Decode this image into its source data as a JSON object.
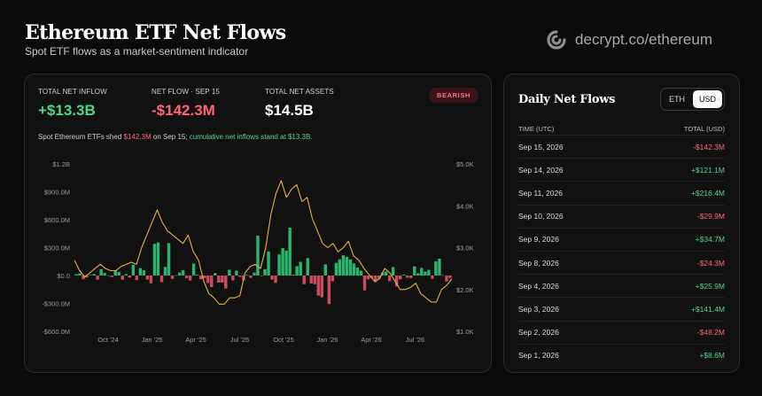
{
  "header": {
    "title": "Ethereum ETF Net Flows",
    "subtitle": "Spot ETF flows as a market-sentiment indicator",
    "brand": "decrypt.co/ethereum"
  },
  "kpis": [
    {
      "label": "TOTAL NET INFLOW",
      "value": "+$13.3B",
      "tone": "green"
    },
    {
      "label": "NET FLOW · SEP 15",
      "value": "-$142.3M",
      "tone": "red"
    },
    {
      "label": "TOTAL NET ASSETS",
      "value": "$14.5B",
      "tone": "white"
    }
  ],
  "badge": "BEARISH",
  "summary": {
    "lead": "Spot Ethereum ETFs shed ",
    "amount": "$142.3M",
    "mid": " on Sep 15; ",
    "tail": "cumulative net inflows stand at $13.3B."
  },
  "colors": {
    "inflow": "#2fd27e",
    "outflow": "#f0566d",
    "price_line": "#e2b23a",
    "background": "#0b0b0c"
  },
  "chart_data": {
    "type": "bar",
    "left_axis": {
      "ticks": [
        "$1.2B",
        "$900.0M",
        "$600.0M",
        "$300.0M",
        "$0.0",
        "-$300.0M",
        "-$600.0M"
      ],
      "ylim": [
        -600,
        1200
      ],
      "unit": "$M"
    },
    "right_axis": {
      "ticks": [
        "$5.0K",
        "$4.0K",
        "$3.0K",
        "$2.0K",
        "$1.0K"
      ],
      "ylim": [
        1000,
        5000
      ],
      "unit": "USD"
    },
    "x_ticks": [
      "Oct '24",
      "Jan '25",
      "Apr '25",
      "Jul '25",
      "Oct '25",
      "Jan '26",
      "Apr '26",
      "Jul '26"
    ],
    "x_range": [
      "2024-08",
      "2026-09"
    ],
    "grid": false,
    "series": [
      {
        "kind": "bars",
        "segments": [
          {
            "from": 0,
            "to": 16,
            "mean": 15,
            "amp": 70
          },
          {
            "from": 16,
            "to": 22,
            "mean": 60,
            "amp": 160
          },
          {
            "from": 22,
            "to": 28,
            "mean": 120,
            "amp": 250
          },
          {
            "from": 28,
            "to": 36,
            "mean": 20,
            "amp": 110
          },
          {
            "from": 36,
            "to": 44,
            "mean": -40,
            "amp": 120
          },
          {
            "from": 44,
            "to": 51,
            "mean": -10,
            "amp": 80
          },
          {
            "from": 51,
            "to": 58,
            "mean": 300,
            "amp": 420
          },
          {
            "from": 58,
            "to": 64,
            "mean": 150,
            "amp": 400
          },
          {
            "from": 64,
            "to": 72,
            "mean": -50,
            "amp": 350
          },
          {
            "from": 72,
            "to": 84,
            "mean": 30,
            "amp": 200
          },
          {
            "from": 84,
            "to": 94,
            "mean": -10,
            "amp": 110
          },
          {
            "from": 94,
            "to": 99,
            "mean": 30,
            "amp": 70
          },
          {
            "from": 99,
            "to": 106,
            "mean": 70,
            "amp": 140
          }
        ],
        "count": 106
      },
      {
        "kind": "line",
        "points": [
          2700,
          2450,
          2300,
          2400,
          2500,
          2600,
          2500,
          2450,
          2450,
          2550,
          2600,
          2650,
          2600,
          3000,
          3300,
          3600,
          3900,
          3600,
          3400,
          3300,
          3200,
          3100,
          3300,
          2900,
          2700,
          2200,
          1900,
          1800,
          1650,
          1650,
          1800,
          1800,
          1850,
          2400,
          2550,
          2600,
          2500,
          3000,
          3800,
          4300,
          4600,
          4200,
          4400,
          4500,
          4100,
          4200,
          3700,
          3400,
          3100,
          3000,
          3100,
          2900,
          3000,
          3150,
          2800,
          2700,
          2500,
          2350,
          2200,
          2250,
          2500,
          2400,
          2200,
          2000,
          2000,
          2050,
          2150,
          1900,
          1800,
          1700,
          1700,
          2000,
          2100,
          2250
        ]
      }
    ]
  },
  "daily": {
    "title": "Daily Net Flows",
    "toggle": [
      "ETH",
      "USD"
    ],
    "active": "USD",
    "col_date": "TIME (UTC)",
    "col_total": "TOTAL (USD)",
    "rows": [
      {
        "date": "Sep 15, 2026",
        "value": "-$142.3M"
      },
      {
        "date": "Sep 14, 2026",
        "value": "+$121.1M"
      },
      {
        "date": "Sep 11, 2026",
        "value": "+$216.4M"
      },
      {
        "date": "Sep 10, 2026",
        "value": "-$29.9M"
      },
      {
        "date": "Sep 9, 2026",
        "value": "+$34.7M"
      },
      {
        "date": "Sep 8, 2026",
        "value": "-$24.3M"
      },
      {
        "date": "Sep 4, 2026",
        "value": "+$25.9M"
      },
      {
        "date": "Sep 3, 2026",
        "value": "+$141.4M"
      },
      {
        "date": "Sep 2, 2026",
        "value": "-$48.2M"
      },
      {
        "date": "Sep 1, 2026",
        "value": "+$8.6M"
      }
    ]
  }
}
